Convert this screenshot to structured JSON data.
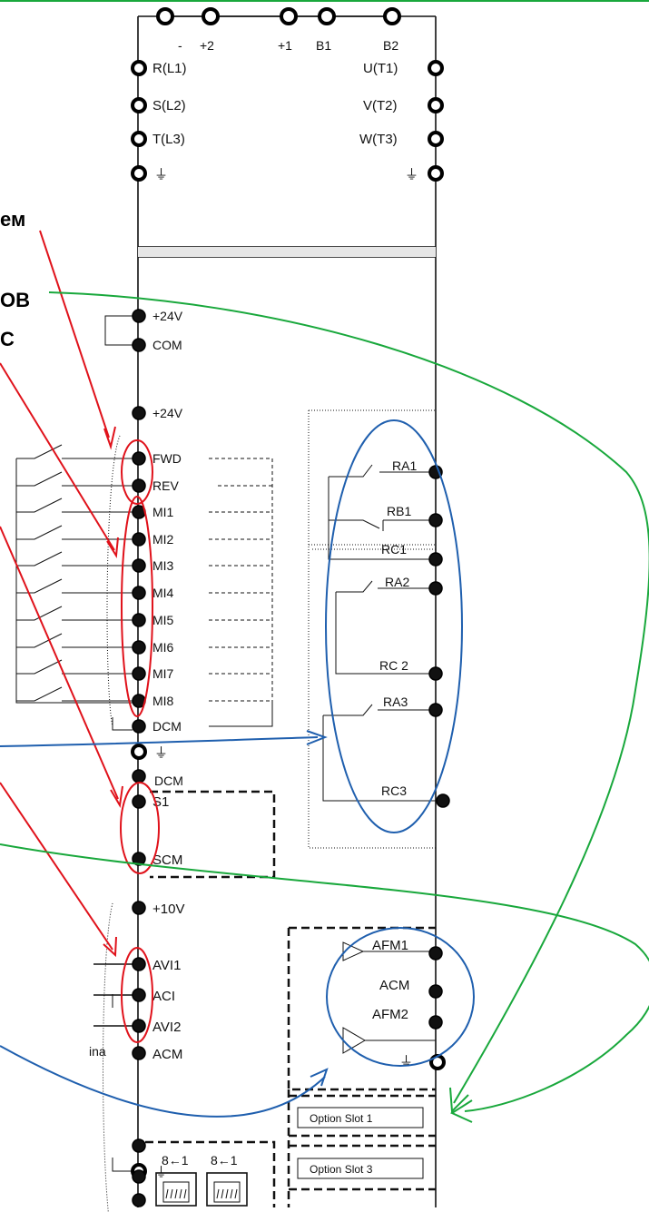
{
  "top_terminals": [
    "-",
    "+2",
    "+1",
    "B1",
    "B2"
  ],
  "input_terminals": [
    "R(L1)",
    "S(L2)",
    "T(L3)"
  ],
  "output_terminals": [
    "U(T1)",
    "V(T2)",
    "W(T3)"
  ],
  "ground_symbol": "⏚",
  "left_labels": [
    "ем",
    "ОВ",
    "С"
  ],
  "power_terminals": [
    "+24V",
    "COM",
    "+24V"
  ],
  "digital_inputs": [
    "FWD",
    "REV",
    "MI1",
    "MI2",
    "MI3",
    "MI4",
    "MI5",
    "MI6",
    "MI7",
    "MI8",
    "DCM"
  ],
  "lower_terminals": {
    "dcm2": "DCM",
    "s1": "S1",
    "scm": "SCM",
    "plus10v": "+10V",
    "avi1": "AVI1",
    "aci": "ACI",
    "avi2": "AVI2",
    "acm": "ACM"
  },
  "left_clip_text": "ina",
  "relay_labels": [
    "RA1",
    "RB1",
    "RC1",
    "RA2",
    "RC 2",
    "RA3",
    "RC3"
  ],
  "analog_outputs": [
    "AFM1",
    "ACM",
    "AFM2"
  ],
  "option_slots": [
    "Option Slot 1",
    "Option Slot 3"
  ],
  "rj45_labels": [
    "8←1",
    "8←1"
  ],
  "colors": {
    "red": "#e0121b",
    "blue": "#1f5fae",
    "green": "#19a83c",
    "top_border": "#19a83c"
  }
}
